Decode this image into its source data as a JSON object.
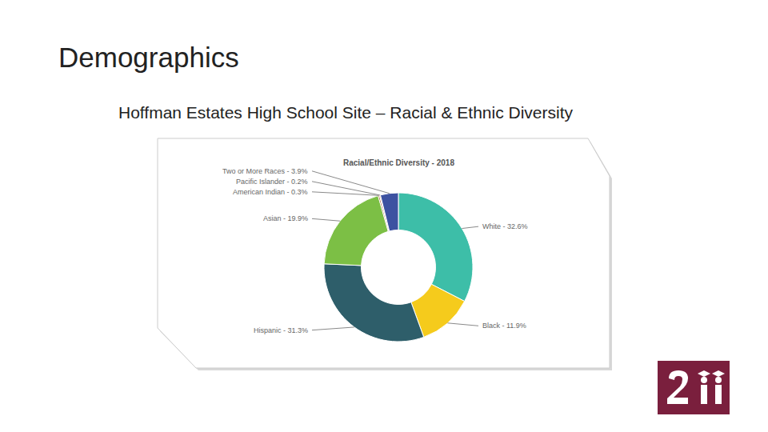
{
  "slide": {
    "title": "Demographics",
    "subtitle": "Hoffman Estates High School Site – Racial & Ethnic Diversity"
  },
  "chart_data": {
    "type": "pie",
    "title": "Racial/Ethnic Diversity - 2018",
    "categories": [
      "White",
      "Black",
      "Hispanic",
      "Asian",
      "American Indian",
      "Pacific Islander",
      "Two or More Races"
    ],
    "values": [
      32.6,
      11.9,
      31.3,
      19.9,
      0.3,
      0.2,
      3.9
    ],
    "value_labels": [
      "White - 32.6%",
      "Black - 11.9%",
      "Hispanic - 31.3%",
      "Asian - 19.9%",
      "American Indian - 0.3%",
      "Pacific Islander - 0.2%",
      "Two or More Races - 3.9%"
    ],
    "colors": [
      "#3dbea8",
      "#f5cb1c",
      "#2e5e6a",
      "#7cbf45",
      "#a0522d",
      "#e8743b",
      "#3d52a1"
    ],
    "data_labels": true
  }
}
